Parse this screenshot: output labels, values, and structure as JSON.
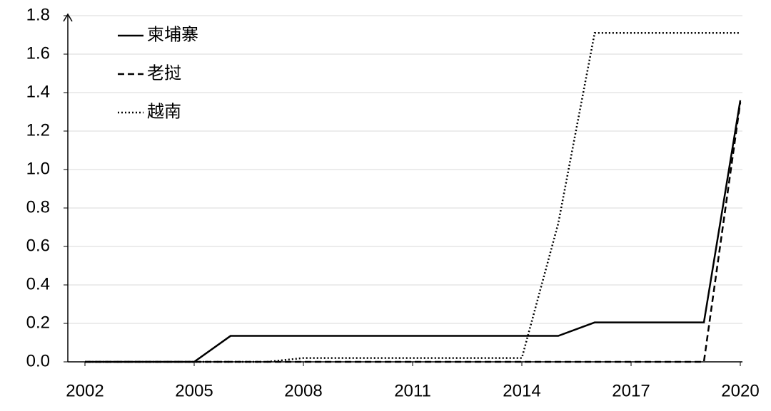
{
  "chart_data": {
    "type": "line",
    "x": [
      2002,
      2003,
      2004,
      2005,
      2006,
      2007,
      2008,
      2009,
      2010,
      2011,
      2012,
      2013,
      2014,
      2015,
      2016,
      2017,
      2018,
      2019,
      2020
    ],
    "xlim": [
      2001.5,
      2020.5
    ],
    "xticks": [
      2002,
      2005,
      2008,
      2011,
      2014,
      2017,
      2020
    ],
    "ylim": [
      0,
      1.8
    ],
    "yticks": [
      {
        "value": 0,
        "label": "0.0"
      },
      0.2,
      0.4,
      0.6,
      0.8,
      {
        "value": 1,
        "label": "1.0"
      },
      1.2,
      1.4,
      1.6,
      1.8
    ],
    "grid": true,
    "legend": "upper left",
    "series": [
      {
        "name": "柬埔寨",
        "color": "#000000",
        "dash": "solid",
        "values": [
          0,
          0,
          0,
          0,
          0.135,
          0.135,
          0.135,
          0.135,
          0.135,
          0.135,
          0.135,
          0.135,
          0.135,
          0.135,
          0.205,
          0.205,
          0.205,
          0.205,
          1.36
        ]
      },
      {
        "name": "老挝",
        "color": "#000000",
        "dash": "dashed",
        "values": [
          0,
          0,
          0,
          0,
          0,
          0,
          0,
          0,
          0,
          0,
          0,
          0,
          0,
          0,
          0,
          0,
          0,
          0,
          1.35
        ]
      },
      {
        "name": "越南",
        "color": "#000000",
        "dash": "dotted",
        "values": [
          0,
          0,
          0,
          0,
          0,
          0,
          0.02,
          0.02,
          0.02,
          0.02,
          0.02,
          0.02,
          0.02,
          0.72,
          1.71,
          1.71,
          1.71,
          1.71,
          1.71
        ]
      }
    ]
  }
}
